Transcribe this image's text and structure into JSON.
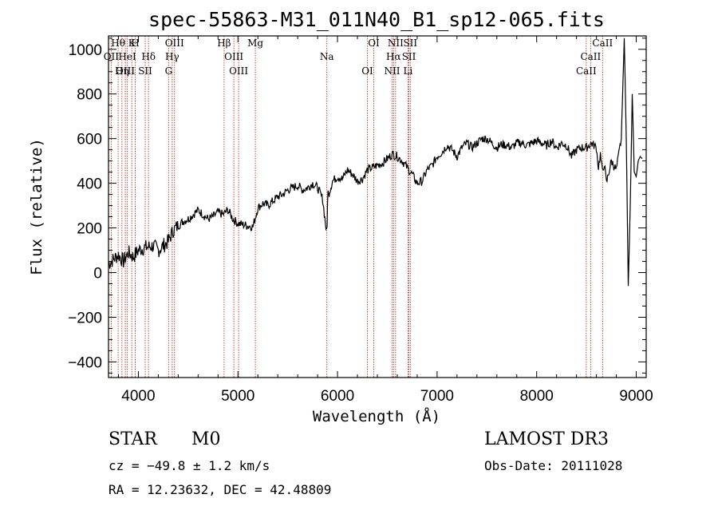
{
  "chart_data": {
    "type": "line",
    "title": "spec-55863-M31_011N40_B1_sp12-065.fits",
    "xlabel": "Wavelength (Å)",
    "ylabel": "Flux (relative)",
    "xlim": [
      3700,
      9100
    ],
    "ylim": [
      -470,
      1060
    ],
    "xticks": [
      4000,
      5000,
      6000,
      7000,
      8000,
      9000
    ],
    "xtick_labels": [
      "4000",
      "5000",
      "6000",
      "7000",
      "8000",
      "9000"
    ],
    "yticks": [
      -400,
      -200,
      0,
      200,
      400,
      600,
      800,
      1000
    ],
    "ytick_labels": [
      "−400",
      "−200",
      "0",
      "200",
      "400",
      "600",
      "800",
      "1000"
    ],
    "spectrum": {
      "x": [
        3700,
        3750,
        3800,
        3850,
        3900,
        3950,
        4000,
        4050,
        4100,
        4150,
        4200,
        4250,
        4300,
        4350,
        4400,
        4450,
        4500,
        4550,
        4600,
        4650,
        4700,
        4750,
        4800,
        4850,
        4900,
        4950,
        5000,
        5050,
        5100,
        5150,
        5200,
        5250,
        5300,
        5350,
        5400,
        5450,
        5500,
        5550,
        5600,
        5650,
        5700,
        5750,
        5800,
        5850,
        5890,
        5895,
        5900,
        5905,
        5910,
        5950,
        6000,
        6050,
        6100,
        6150,
        6200,
        6250,
        6300,
        6350,
        6400,
        6450,
        6500,
        6550,
        6600,
        6650,
        6700,
        6750,
        6800,
        6850,
        6900,
        6950,
        7000,
        7050,
        7100,
        7150,
        7200,
        7250,
        7300,
        7350,
        7400,
        7450,
        7500,
        7550,
        7600,
        7650,
        7700,
        7750,
        7800,
        7850,
        7900,
        7950,
        8000,
        8050,
        8100,
        8150,
        8200,
        8250,
        8300,
        8350,
        8400,
        8450,
        8500,
        8550,
        8600,
        8620,
        8640,
        8660,
        8680,
        8700,
        8750,
        8800,
        8850,
        8880,
        8900,
        8920,
        8940,
        8960,
        8980,
        9000,
        9020,
        9040,
        9060
      ],
      "y": [
        40,
        60,
        80,
        50,
        90,
        70,
        100,
        110,
        115,
        120,
        100,
        120,
        140,
        190,
        210,
        230,
        240,
        260,
        280,
        260,
        240,
        250,
        270,
        260,
        280,
        240,
        220,
        215,
        210,
        205,
        290,
        310,
        300,
        320,
        340,
        350,
        370,
        380,
        390,
        370,
        380,
        400,
        380,
        330,
        180,
        200,
        330,
        360,
        350,
        410,
        430,
        420,
        460,
        440,
        410,
        420,
        460,
        470,
        480,
        490,
        510,
        530,
        520,
        500,
        470,
        440,
        400,
        410,
        460,
        480,
        520,
        540,
        570,
        550,
        520,
        560,
        580,
        560,
        580,
        600,
        600,
        580,
        560,
        575,
        570,
        560,
        580,
        580,
        570,
        580,
        590,
        580,
        570,
        590,
        560,
        580,
        570,
        520,
        550,
        560,
        560,
        580,
        560,
        470,
        530,
        450,
        490,
        400,
        500,
        460,
        600,
        1050,
        600,
        -60,
        300,
        800,
        450,
        430,
        500,
        520,
        510
      ]
    },
    "emission_lines": [
      {
        "label": "Hθ",
        "wavelength": 3797
      },
      {
        "label": "OII",
        "wavelength": 3727
      },
      {
        "label": "OIII",
        "wavelength": 3869
      },
      {
        "label": "K",
        "wavelength": 3934
      },
      {
        "label": "HeI",
        "wavelength": 3889
      },
      {
        "label": "Hη",
        "wavelength": 3835
      },
      {
        "label": "H",
        "wavelength": 3968
      },
      {
        "label": "Hδ",
        "wavelength": 4102
      },
      {
        "label": "SII",
        "wavelength": 4069
      },
      {
        "label": "OIII",
        "wavelength": 4363
      },
      {
        "label": "Hγ",
        "wavelength": 4340
      },
      {
        "label": "G",
        "wavelength": 4304
      },
      {
        "label": "Hβ",
        "wavelength": 4861
      },
      {
        "label": "OIII",
        "wavelength": 4959
      },
      {
        "label": "OIII",
        "wavelength": 5007
      },
      {
        "label": "Mg",
        "wavelength": 5175
      },
      {
        "label": "Na",
        "wavelength": 5893
      },
      {
        "label": "OI",
        "wavelength": 6300
      },
      {
        "label": "OI",
        "wavelength": 6364
      },
      {
        "label": "Hα",
        "wavelength": 6563
      },
      {
        "label": "NII",
        "wavelength": 6548
      },
      {
        "label": "NII",
        "wavelength": 6583
      },
      {
        "label": "SII",
        "wavelength": 6717
      },
      {
        "label": "Li",
        "wavelength": 6708
      },
      {
        "label": "SII",
        "wavelength": 6731
      },
      {
        "label": "CaII",
        "wavelength": 8542
      },
      {
        "label": "CaII",
        "wavelength": 8498
      },
      {
        "label": "CaII",
        "wavelength": 8662
      }
    ]
  },
  "info": {
    "class": "STAR",
    "subclass": "M0",
    "survey": "LAMOST DR3",
    "cz": "cz = −49.8 ± 1.2 km/s",
    "obs_date": "Obs-Date: 20111028",
    "coords": "RA =  12.23632, DEC =  42.48809"
  },
  "colors": {
    "line_markers": "#c0392b",
    "spectrum": "#000000"
  }
}
